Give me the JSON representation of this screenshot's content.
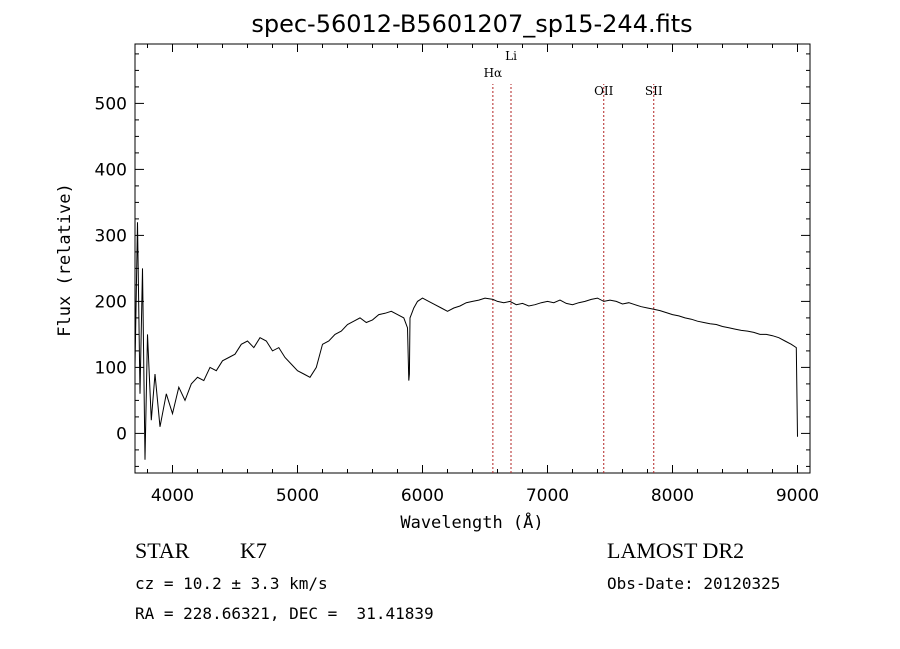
{
  "chart_data": {
    "type": "line",
    "title": "spec-56012-B5601207_sp15-244.fits",
    "xlabel": "Wavelength (Å)",
    "ylabel": "Flux (relative)",
    "xlim": [
      3700,
      9100
    ],
    "ylim": [
      -60,
      590
    ],
    "xticks": [
      4000,
      5000,
      6000,
      7000,
      8000,
      9000
    ],
    "yticks": [
      0,
      100,
      200,
      300,
      400,
      500
    ],
    "grid": false,
    "series": [
      {
        "x": [
          3700,
          3720,
          3740,
          3760,
          3780,
          3800,
          3830,
          3860,
          3900,
          3950,
          4000,
          4050,
          4100,
          4150,
          4200,
          4250,
          4300,
          4350,
          4400,
          4450,
          4500,
          4550,
          4600,
          4650,
          4700,
          4750,
          4800,
          4850,
          4900,
          4950,
          5000,
          5050,
          5100,
          5150,
          5200,
          5250,
          5300,
          5350,
          5400,
          5450,
          5500,
          5550,
          5600,
          5650,
          5700,
          5750,
          5800,
          5850,
          5880,
          5890,
          5895,
          5900,
          5910,
          5930,
          5960,
          6000,
          6050,
          6100,
          6150,
          6200,
          6250,
          6300,
          6350,
          6400,
          6450,
          6500,
          6563,
          6600,
          6650,
          6700,
          6750,
          6800,
          6850,
          6900,
          6950,
          7000,
          7050,
          7100,
          7150,
          7200,
          7250,
          7300,
          7350,
          7400,
          7450,
          7500,
          7550,
          7600,
          7650,
          7700,
          7750,
          7800,
          7850,
          7900,
          7950,
          8000,
          8050,
          8100,
          8150,
          8200,
          8250,
          8300,
          8350,
          8400,
          8450,
          8500,
          8550,
          8600,
          8650,
          8700,
          8750,
          8800,
          8850,
          8900,
          8950,
          8990,
          9000
        ],
        "y": [
          100,
          320,
          60,
          250,
          -40,
          150,
          20,
          90,
          10,
          60,
          30,
          70,
          50,
          75,
          85,
          80,
          100,
          95,
          110,
          115,
          120,
          135,
          140,
          130,
          145,
          140,
          125,
          130,
          115,
          105,
          95,
          90,
          85,
          100,
          135,
          140,
          150,
          155,
          165,
          170,
          175,
          168,
          172,
          180,
          182,
          185,
          180,
          175,
          160,
          80,
          90,
          175,
          180,
          190,
          200,
          205,
          200,
          195,
          190,
          185,
          190,
          193,
          198,
          200,
          202,
          205,
          203,
          200,
          198,
          200,
          195,
          197,
          193,
          195,
          198,
          200,
          198,
          202,
          197,
          195,
          198,
          200,
          203,
          205,
          200,
          202,
          200,
          196,
          198,
          195,
          192,
          190,
          188,
          186,
          183,
          180,
          178,
          175,
          173,
          170,
          168,
          166,
          165,
          162,
          160,
          158,
          156,
          155,
          153,
          150,
          150,
          148,
          145,
          140,
          135,
          130,
          -5
        ]
      }
    ],
    "lines": [
      {
        "label": "Hα",
        "x": 6563
      },
      {
        "label": "Li",
        "x": 6708
      },
      {
        "label": "OII",
        "x": 7450
      },
      {
        "label": "SII",
        "x": 7850
      }
    ]
  },
  "info": {
    "object_type": "STAR",
    "subclass": "K7",
    "survey": "LAMOST DR2",
    "cz": "cz = 10.2 ± 3.3 km/s",
    "obs_date": "Obs-Date: 20120325",
    "coords": "RA = 228.66321, DEC =  31.41839"
  },
  "colors": {
    "spectrum": "#000000",
    "line_marker": "#b22222",
    "axes": "#000000"
  }
}
